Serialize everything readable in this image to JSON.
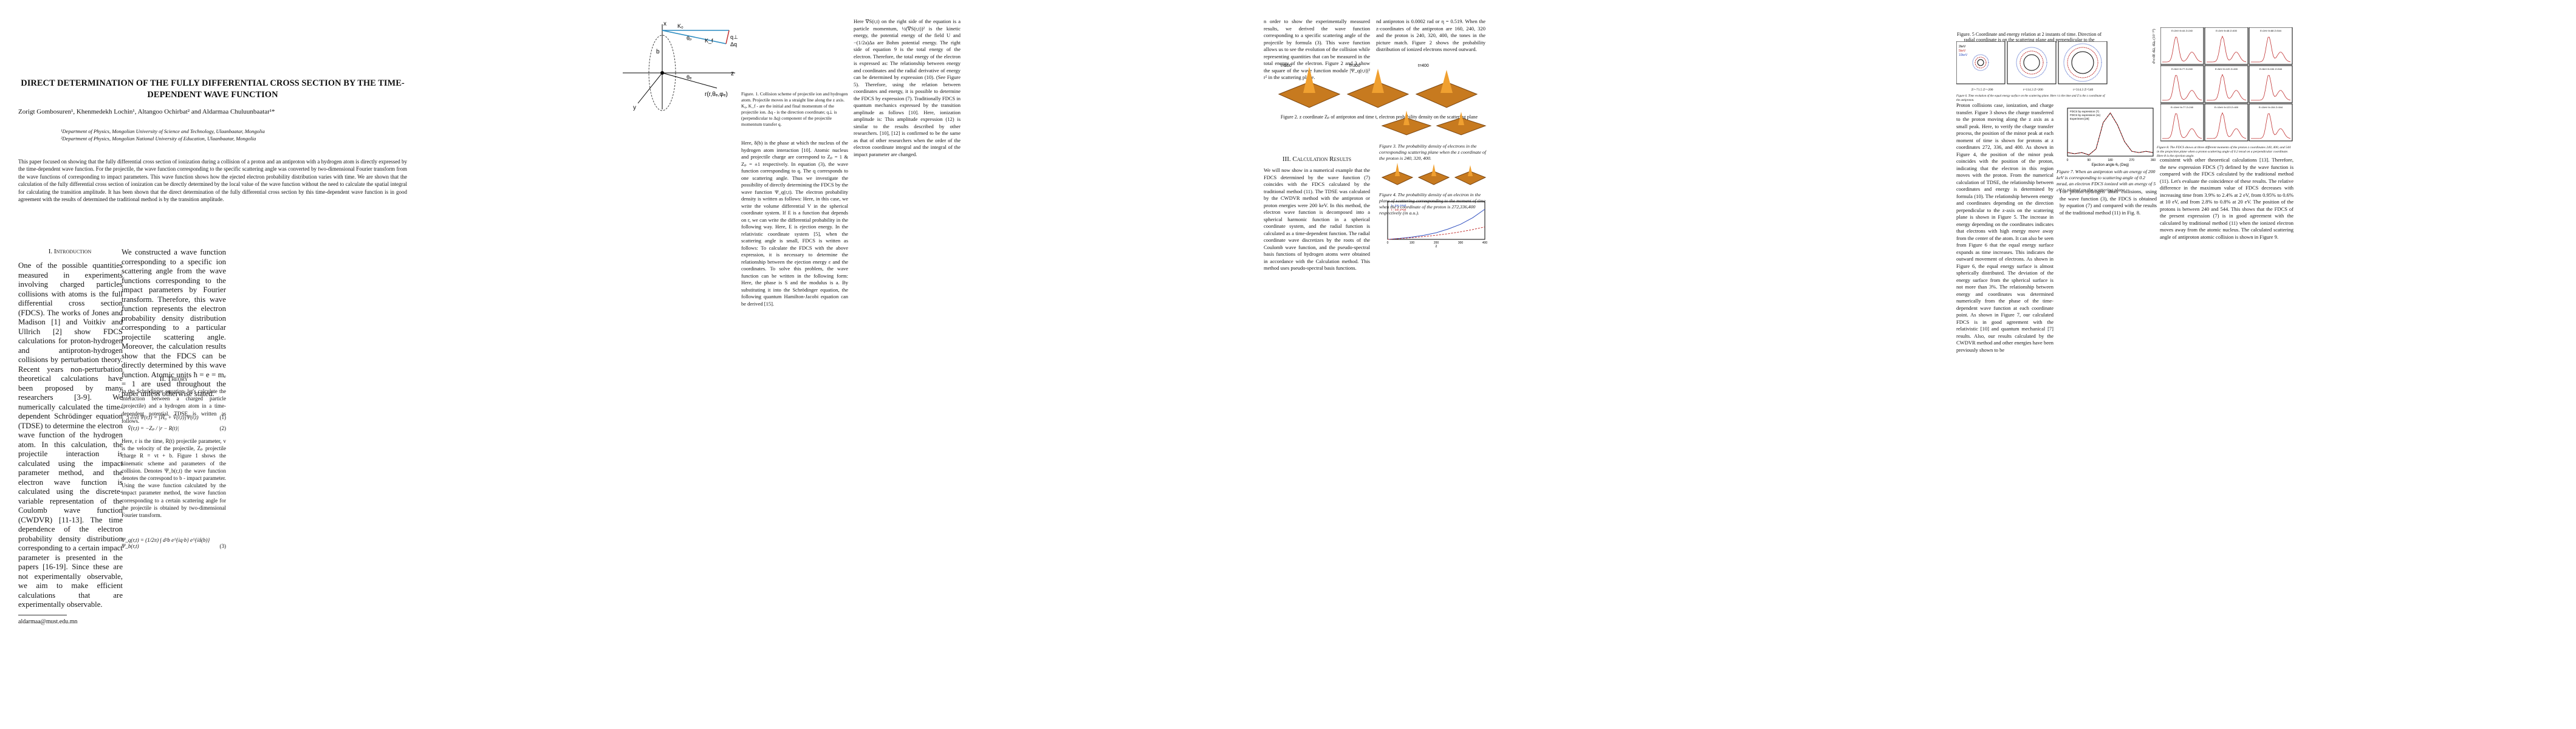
{
  "page1": {
    "title": "DIRECT DETERMINATION OF THE FULLY DIFFERENTIAL CROSS SECTION BY THE TIME-DEPENDENT WAVE FUNCTION",
    "authors": "Zorigt Gombosuren¹, Khenmedekh Lochin¹, Altangoo Ochirbat² and Aldarmaa Chuluunbaatar¹*",
    "affil1": "¹Department of Physics, Mongolian University of Science and Technology, Ulaanbaatar, Mongolia",
    "affil2": "²Department of Physics, Mongolian National University of Education, Ulaanbaatar, Mongolia",
    "abstract": "This paper focused on showing that the fully differential cross section of ionization during a collision of a proton and an antiproton with a hydrogen atom is directly expressed by the time-dependent wave function. For the projectile, the wave function corresponding to the specific scattering angle was converted by two-dimensional Fourier transform from the wave functions of corresponding to impact parameters. This wave function shows how the ejected electron probability distribution varies with time. We are shown that the calculation of the fully differential cross section of ionization can be directly determined by the local value of the wave function without the need to calculate the spatial integral for calculating the transition amplitude. It has been shown that the direct determination of the fully differential cross section by this time-dependent wave function is in good agreement with the results of determined the traditional method is by the transition amplitude.",
    "sec1": "I. Introduction",
    "intro": "One of the possible quantities measured in experiments involving charged particles collisions with atoms is the full differential cross section (FDCS). The works of Jones and Madison [1] and Voitkiv and Ullrich [2] show FDCS calculations for proton-hydrogen and antiproton-hydrogen collisions by perturbation theory. Recent years non-perturbation theoretical calculations have been proposed by many researchers [3-9]. We numerically calculated the time-dependent Schrödinger equation (TDSE) to determine the electron wave function of the hydrogen atom. In this calculation, the projectile interaction is calculated using the impact parameter method, and the electron wave function is calculated using the discrete-variable representation of the Coulomb wave function (CWDVR) [11-13]. The time dependence of the electron probability density distribution corresponding to a certain impact parameter is presented in the papers [16-19]. Since these are not experimentally observable, we aim to make efficient calculations that are experimentally observable.",
    "col2a": "We constructed a wave function corresponding to a specific ion scattering angle from the wave functions corresponding to the impact parameters by Fourier transform. Therefore, this wave function represents the electron probability density distribution corresponding to a particular projectile scattering angle. Moreover, the calculation results show that the FDCS can be directly determined by this wave function. Atomic units ħ = e = mₑ = 1 are used throughout the paper unless otherwise stated.",
    "sec2": "II. Theory",
    "theory": "In the Schrödinger equation, let's calculate the interaction between a charged particle (projectile) and a hydrogen atom in a time-dependent potential. TDSE is written as follows.",
    "eq1": "i ∂/∂t Ψ(r,t) = [Ĥ₀ + V̂(r,t)]Ψ(r,t)",
    "eq2": "V̂(r,t) = −Zₚ / |r − R(t)|",
    "theory2": "Here, r is the time, R(t) projectile parameter, v is the velocity of the projectile, Zₚ projectile charge R = vt + b. Figure 1 shows the kinematic scheme and parameters of the collision. Denotes Ψ_b(r,t) the wave function denotes the correspond to b - impact parameter. Using the wave function calculated by the impact parameter method, the wave function corresponding to a certain scattering angle for the projectile is obtained by two-dimensional Fourier transform.",
    "eq3": "Ψ_q(r,t) = (1/2π) ∫ d²b e^{iq·b} e^{iδ(b)} Ψ_b(r,t)",
    "footnote": "aldarmaa@must.edu.mn"
  },
  "page2": {
    "fig1_caption": "Figure. 1. Collision scheme of projectile ion and hydrogen atom. Projectile moves in a straight line along the z axis. K₀, K_f - are the initial and final momentum of the projectile ion. Δq - is the direction coordinate; q⊥ is (perpendicular to Δq) component of the projectile momentum transfer q.",
    "fig1_labels": [
      "x",
      "y",
      "z",
      "b",
      "θₚ",
      "θₑ",
      "K₀",
      "K_f",
      "q⊥",
      "Δq",
      "r(r,θₑ,φₑ)"
    ],
    "colA": "Here, δ(b) is the phase at which the nucleus of the hydrogen atom interaction [10]. Atomic nucleus and projectile charge are correspond to Zₚ = 1 & Zₚ = ±1 respectively. In equation (3), the wave function corresponding to q. The q corresponds to one scattering angle. Thus we investigate the possibility of directly determining the FDCS by the wave function Ψ_q(r,t). The electron probability density is written as follows: Here, in this case, we write the volume differential V in the spherical coordinate system. If E is a function that depends on r, we can write the differential probability in the following way. Here, E is ejection energy. In the relativistic coordinate system [5], when the scattering angle is small, FDCS is written as follows: To calculate the FDCS with the above expression, it is necessary to determine the relationship between the ejection energy ε and the coordinates. To solve this problem, the wave function can be written in the following form: Here, the phase is S and the modulus is a. By substituting it into the Schrödinger equation, the following quantum Hamilton-Jacobi equation can be derived [15].",
    "colB": "Here ∇S(r,t) on the right side of the equation is a particle momentum, ½(∇S(r,t))² is the kinetic energy, the potential energy of the field U and −(1/2a)Δa are Bohm potential energy. The right side of equation 9 is the total energy of the electron. Therefore, the total energy of the electron is expressed as: The relationship between energy and coordinates and the radial derivative of energy can be determined by expression (10). (See Figure 5). Therefore, using the relation between coordinates and energy, it is possible to determine the FDCS by expression (7). Traditionally FDCS in quantum mechanics expressed by the transition amplitude as follows [10]. Here, ionization amplitude is: This amplitude expression (12) is similar to the results described by other researchers. [10], [12] is confirmed to be the same as that of other researchers when the order of the electron coordinate integral and the integral of the impact parameter are changed."
  },
  "page3": {
    "fig2_caption": "Figure 2. z coordinate Zₚ of antiproton and time t, electron probability density on the scattering plane",
    "fig2_panels": [
      "t=200",
      "t=300",
      "t=400"
    ],
    "sec3": "III. Calculation Results",
    "results": "We will now show in a numerical example that the FDCS determined by the wave function (7) coincides with the FDCS calculated by the traditional method (11). The TDSE was calculated by the CWDVR method with the antiproton or proton energies were 200 keV. In this method, the electron wave function is decomposed into a spherical harmonic function in a spherical coordinate system, and the radial function is calculated as a time-dependent function. The radial coordinate wave discretizes by the roots of the Coulomb wave function, and the pseudo-spectral basis functions of hydrogen atoms were obtained in accordance with the Calculation method. This method uses pseudo-spectral basis functions.",
    "fig3_caption": "Figure 3. The probability density of electrons in the corresponding scattering plane when the z coordinate of the proton is 240, 320, 400.",
    "fig4_caption": "Figure 4. The probability density of an electron in the plane of scattering corresponding to the moment of time when the z coordinate of the proton is 272,336,400 respectively (in a.u.).",
    "colC": "n order to show the experimentally measured results, we derived the wave function corresponding to a specific scattering angle of the projectile by formula (3). This wave function allows us to see the evolution of the collision while representing quantities that can be measured in the total energy of the electron. Figure 2 and 3 show the square of the wave function module |Ψ_q(r,t)|² r² in the scattering plane.",
    "colD": "nd antiproton is 0.0002 rad or η = 0.519. When the z-coordinates of the antiproton are 160, 240, 320 and the proton is 240, 320, 400, the tones in the picture match. Figure 2 shows the probability distribution of ionized electrons moved outward.",
    "fig5line_legend": [
      "t - ion z=wt",
      "t - ion z=wt"
    ],
    "fig5line_xlabel": "z"
  },
  "page4": {
    "fig5_caption": "Figure. 5 Coordinate and energy relation at 2 instants of time. Direction of radial coordinate is on the scattering plane and perpendicular to the velocity.",
    "fig6_caption": "Figure 6. Time evolution of the equal energy surface on the scattering plane. Here t is the time and Z is the z coordinate of the antiproton.",
    "fig6_legend": [
      "2keV",
      "5keV",
      "10keV"
    ],
    "fig6_labels": [
      "Z=-71.5 Z=-200",
      "t=114.3 Z=200",
      "t=314.3 Z=540"
    ],
    "fig8_panels": [
      "E=2eV θ=44 Z=240",
      "E=2eV θ=48 Z=400",
      "E=2eV θ=88 Z=544",
      "E=5eV θ=77 Z=240",
      "E=5eV θ=120 Z=400",
      "E=5eV θ=154 Z=544",
      "E=10eV θ=77 Z=240",
      "E=10eV θ=123 Z=400",
      "E=10eV θ=154 Z=544"
    ],
    "fig8_ylabel": "d⁵σ/dE dΩₑ dΩₚ (10⁻²⁰)",
    "fig8_caption": "Figure 8. The FDCS shows at three different moments of the proton z coordinates 240, 400, and 544 in the projection plane when a proton scattering angle of 0.2 mrad on a perpendicular coordinate. Here θ is the ejection angle.",
    "fig7_caption": "Figure 7. When an antiproton with an energy of 200 keV is corresponding to scattering angle of 0.2 mrad, an electron FDCS ionized with an energy of 5 eV is plotted on the scattering plane.",
    "fig7_xlabel": "Ejection angle θₑ (Deg)",
    "fig7_legend": [
      "FDCS by expression (7)",
      "FDCS by expression (11)",
      "Experiment [20]"
    ],
    "colE": "Proton collisions case, ionization, and charge transfer. Figure 3 shows the charge transferred to the proton moving along the z axis as a small peak. Here, to verify the charge transfer process, the position of the minor peak at each moment of time is shown for protons at z coordinates 272, 336, and 400. As shown in Figure 4, the position of the minor peak coincides with the position of the proton, indicating that the electron in this region moves with the proton. From the numerical calculation of TDSE, the relationship between coordinates and energy is determined by formula (10). The relationship between energy and coordinates depending on the direction perpendicular to the z-axis on the scattering plane is shown in Figure 5. The increase in energy depending on the coordinates indicates that electrons with high energy move away from the center of the atom. It can also be seen from Figure 6 that the equal energy surface expands as time increases. This indicates the outward movement of electrons. As shown in Figure 6, the equal energy surface is almost spherically distributed. The deviation of the energy surface from the spherical surface is not more than 3%. The relationship between energy and coordinates was determined numerically from the phase of the time-dependent wave function at each coordinate point. As shown in Figure 7, our calculated FDCS is in good agreement with the relativistic [10] and quantum mechanical [7] results. Also, our results calculated by the CWDVR method and other energies have been previously shown to be",
    "colF": "consistent with other theoretical calculations [13]. Therefore, the new expression FDCS (7) defined by the wave function is compared with the FDCS calculated by the traditional method (11). Let's evaluate the coincidence of these results. The relative difference in the maximum value of FDCS decreases with increasing time from 3.9% to 2.4% at 2 eV, from 0.95% to 0.6% at 10 eV, and from 2.8% to 0.8% at 20 eV. The position of the protons is between 240 and 544. This shows that the FDCS of the present expression (7) is in good agreement with the calculated by traditional method (11) when the ionized electron moves away from the atomic nucleus. The calculated scattering angle of antiproton atomic collision is shown in Figure 9.",
    "colG": "For proton-hydrogen atom collisions, using the wave function (3), the FDCS is obtained by equation (7) and compared with the results of the traditional method (11) in Fig. 8."
  },
  "chart_data": [
    {
      "type": "line",
      "title": "",
      "xlabel": "Ejection angle θₑ (Deg)",
      "ylabel": "",
      "xlim": [
        0,
        360
      ],
      "series": [
        {
          "name": "FDCS by expression (7)",
          "x": [
            0,
            30,
            60,
            90,
            120,
            150,
            180,
            210,
            240,
            270,
            300,
            330,
            360
          ],
          "values": [
            0.3,
            0.2,
            0.3,
            0.1,
            0.6,
            2.8,
            3.6,
            2.6,
            1.2,
            0.4,
            0.3,
            0.4,
            0.3
          ]
        },
        {
          "name": "FDCS by expression (11)",
          "x": [
            0,
            30,
            60,
            90,
            120,
            150,
            180,
            210,
            240,
            270,
            300,
            330,
            360
          ],
          "values": [
            0.3,
            0.2,
            0.3,
            0.1,
            0.6,
            2.8,
            3.6,
            2.6,
            1.2,
            0.4,
            0.3,
            0.4,
            0.3
          ]
        }
      ]
    },
    {
      "type": "line",
      "title": "",
      "xlabel": "z",
      "ylabel": "",
      "xlim": [
        0,
        400
      ],
      "ylim": [
        0,
        2
      ],
      "series": [
        {
          "name": "t - ion z=wt",
          "x": [
            0,
            50,
            100,
            150,
            200,
            250,
            300,
            350,
            400
          ],
          "values": [
            0.0,
            0.05,
            0.12,
            0.22,
            0.35,
            0.55,
            0.8,
            1.15,
            1.6
          ]
        },
        {
          "name": "t - ion z=wt",
          "x": [
            0,
            50,
            100,
            150,
            200,
            250,
            300,
            350,
            400
          ],
          "values": [
            0.0,
            0.04,
            0.09,
            0.15,
            0.22,
            0.3,
            0.4,
            0.52,
            0.66
          ]
        }
      ]
    }
  ]
}
